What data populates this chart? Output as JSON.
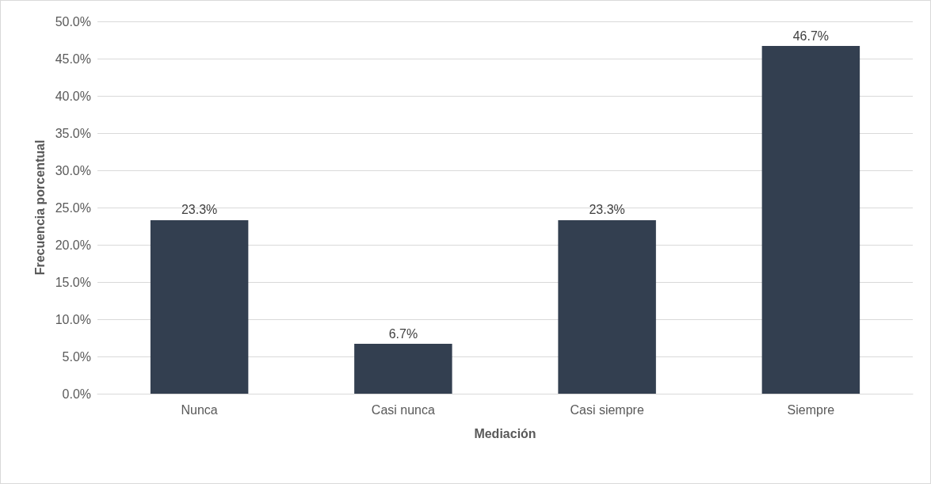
{
  "chart_data": {
    "type": "bar",
    "xlabel": "Mediación",
    "ylabel": "Frecuencia porcentual",
    "categories": [
      "Nunca",
      "Casi nunca",
      "Casi siempre",
      "Siempre"
    ],
    "values": [
      23.3,
      6.7,
      23.3,
      46.7
    ],
    "value_labels": [
      "23.3%",
      "6.7%",
      "23.3%",
      "46.7%"
    ],
    "color": "#333f50",
    "ylim": [
      0,
      50
    ],
    "yticks": [
      {
        "value": 0,
        "label": "0.0%"
      },
      {
        "value": 5,
        "label": "5.0%"
      },
      {
        "value": 10,
        "label": "10.0%"
      },
      {
        "value": 15,
        "label": "15.0%"
      },
      {
        "value": 20,
        "label": "20.0%"
      },
      {
        "value": 25,
        "label": "25.0%"
      },
      {
        "value": 30,
        "label": "30.0%"
      },
      {
        "value": 35,
        "label": "35.0%"
      },
      {
        "value": 40,
        "label": "40.0%"
      },
      {
        "value": 45,
        "label": "45.0%"
      },
      {
        "value": 50,
        "label": "50.0%"
      }
    ],
    "grid": "y"
  }
}
